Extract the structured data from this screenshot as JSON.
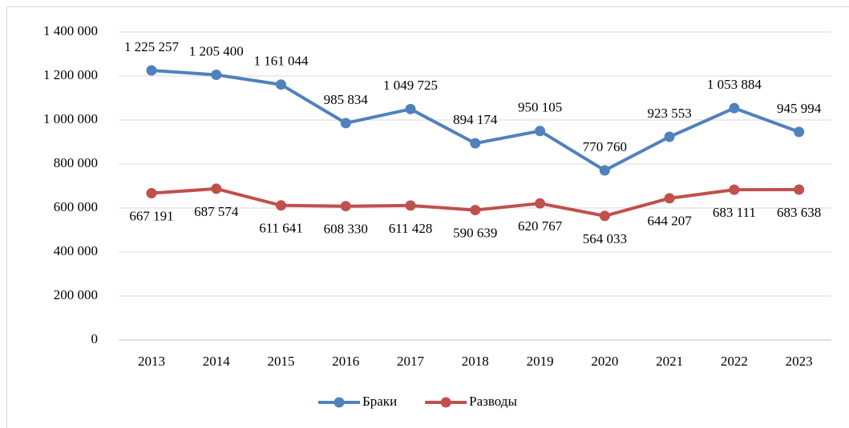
{
  "chart_data": {
    "type": "line",
    "categories": [
      "2013",
      "2014",
      "2015",
      "2016",
      "2017",
      "2018",
      "2019",
      "2020",
      "2021",
      "2022",
      "2023"
    ],
    "series": [
      {
        "name": "Браки",
        "color": "#4f81bd",
        "values": [
          1225257,
          1205400,
          1161044,
          985834,
          1049725,
          894174,
          950105,
          770760,
          923553,
          1053884,
          945994
        ],
        "value_labels": [
          "1 225 257",
          "1 205 400",
          "1 161 044",
          "985 834",
          "1 049 725",
          "894 174",
          "950 105",
          "770 760",
          "923 553",
          "1 053 884",
          "945 994"
        ]
      },
      {
        "name": "Разводы",
        "color": "#c0504d",
        "values": [
          667191,
          687574,
          611641,
          608330,
          611428,
          590639,
          620767,
          564033,
          644207,
          683111,
          683638
        ],
        "value_labels": [
          "667 191",
          "687 574",
          "611 641",
          "608 330",
          "611 428",
          "590 639",
          "620 767",
          "564 033",
          "644 207",
          "683 111",
          "683 638"
        ]
      }
    ],
    "ylim": [
      0,
      1400000
    ],
    "yticks": [
      0,
      {
        "value": 200000,
        "label": "200 000"
      },
      {
        "value": 400000,
        "label": "400 000"
      },
      {
        "value": 600000,
        "label": "600 000"
      },
      {
        "value": 800000,
        "label": "800 000"
      },
      {
        "value": 1000000,
        "label": "1 000 000"
      },
      {
        "value": 1200000,
        "label": "1 200 000"
      },
      {
        "value": 1400000,
        "label": "1 400 000"
      }
    ],
    "grid": true,
    "legend": "bottom"
  }
}
